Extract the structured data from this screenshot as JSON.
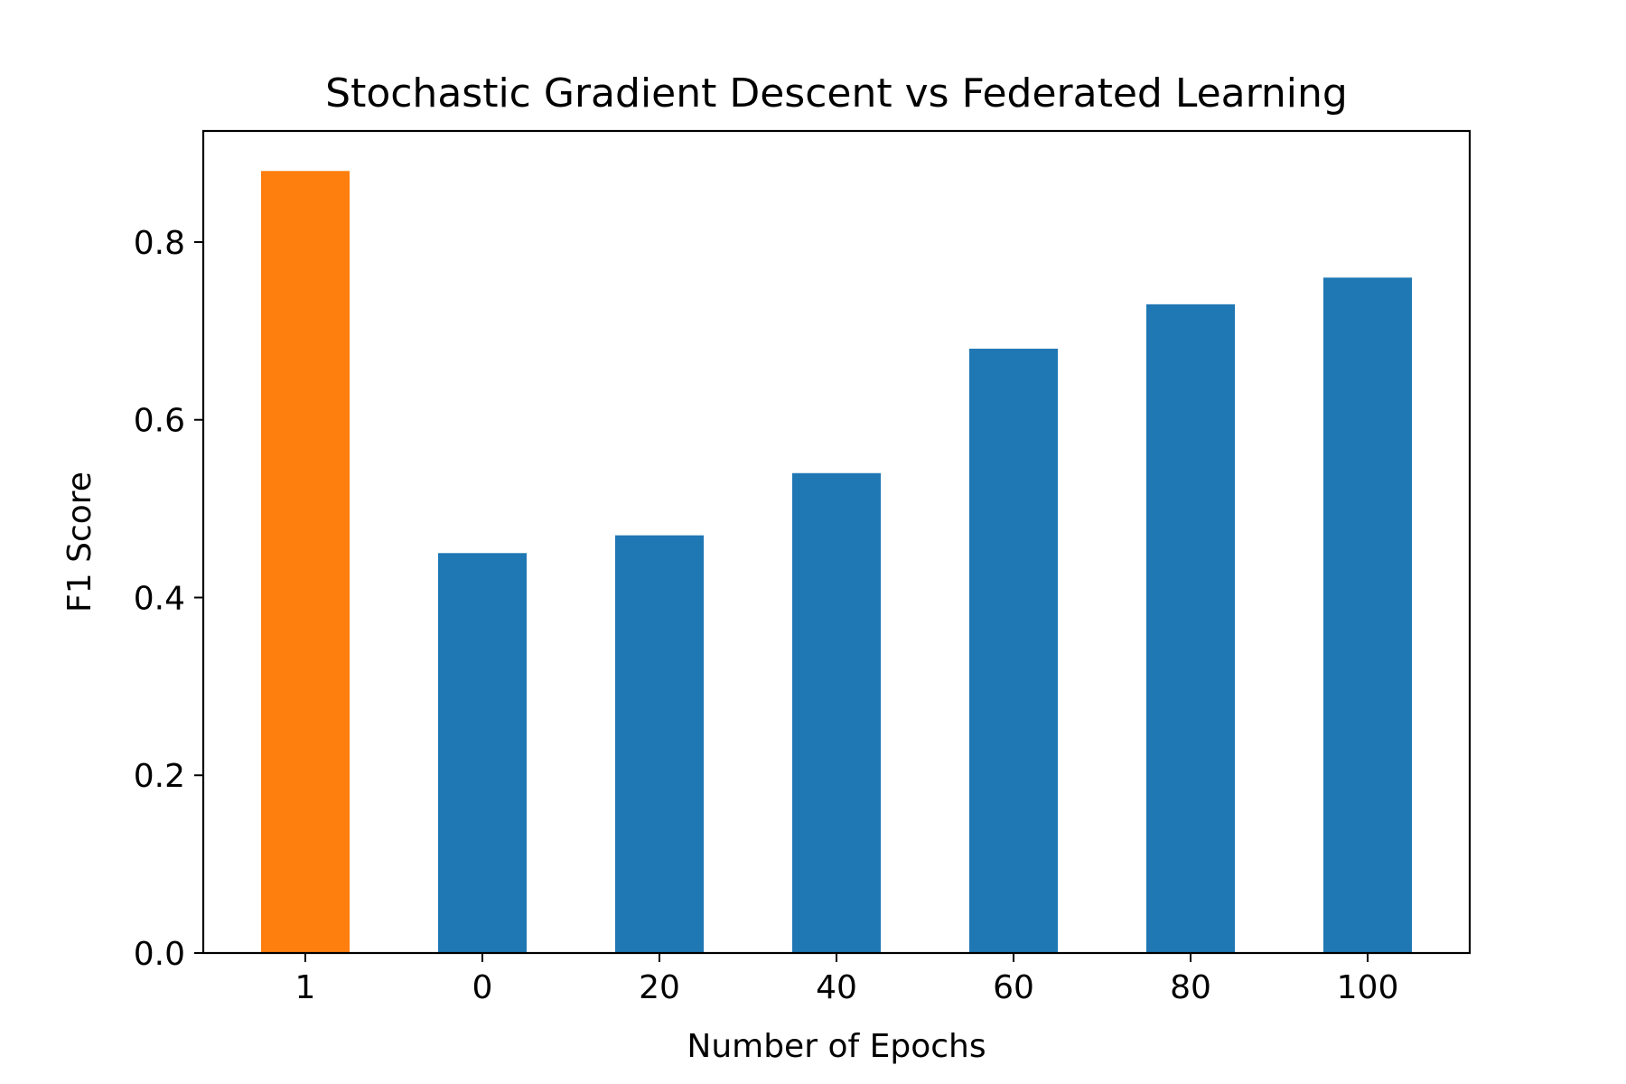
{
  "chart_data": {
    "type": "bar",
    "title": "Stochastic Gradient Descent vs Federated Learning",
    "xlabel": "Number of Epochs",
    "ylabel": "F1 Score",
    "categories": [
      "1",
      "0",
      "20",
      "40",
      "60",
      "80",
      "100"
    ],
    "values": [
      0.88,
      0.45,
      0.47,
      0.54,
      0.68,
      0.73,
      0.76
    ],
    "bar_colors": [
      "#ff7f0e",
      "#1f77b4",
      "#1f77b4",
      "#1f77b4",
      "#1f77b4",
      "#1f77b4",
      "#1f77b4"
    ],
    "ylim": [
      0,
      0.925
    ],
    "yticks": [
      0.0,
      0.2,
      0.4,
      0.6,
      0.8
    ],
    "ytick_labels": [
      "0.0",
      "0.2",
      "0.4",
      "0.6",
      "0.8"
    ],
    "grid": false,
    "legend": false
  }
}
